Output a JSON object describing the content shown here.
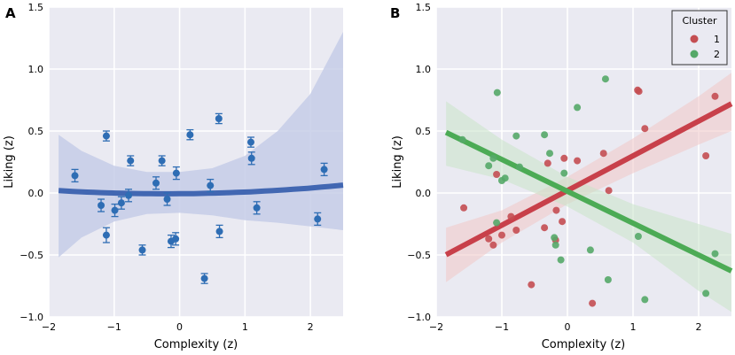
{
  "chart_data": [
    {
      "panel_label": "A",
      "type": "scatter",
      "xlabel": "Complexity (z)",
      "ylabel": "Liking (z)",
      "xlim": [
        -2,
        2.5
      ],
      "ylim": [
        -1.0,
        1.5
      ],
      "xticks": [
        -2,
        -1,
        0,
        1,
        2
      ],
      "yticks": [
        -1.0,
        -0.5,
        0.0,
        0.5,
        1.0,
        1.5
      ],
      "xtick_labels": [
        "−2",
        "−1",
        "0",
        "1",
        "2"
      ],
      "ytick_labels": [
        "−1.0",
        "−0.5",
        "0.0",
        "0.5",
        "1.0",
        "1.5"
      ],
      "grid": true,
      "point_color": "#2e6db4",
      "fit_color": "#4267b2",
      "band_color": "#c6cce8",
      "points": [
        {
          "x": -1.6,
          "y": 0.14,
          "err": 0.05
        },
        {
          "x": -1.2,
          "y": -0.1,
          "err": 0.05
        },
        {
          "x": -1.12,
          "y": 0.46,
          "err": 0.04
        },
        {
          "x": -1.12,
          "y": -0.34,
          "err": 0.06
        },
        {
          "x": -0.99,
          "y": -0.14,
          "err": 0.05
        },
        {
          "x": -0.89,
          "y": -0.08,
          "err": 0.05
        },
        {
          "x": -0.78,
          "y": -0.02,
          "err": 0.05
        },
        {
          "x": -0.75,
          "y": 0.26,
          "err": 0.04
        },
        {
          "x": -0.57,
          "y": -0.46,
          "err": 0.04
        },
        {
          "x": -0.36,
          "y": 0.08,
          "err": 0.05
        },
        {
          "x": -0.27,
          "y": 0.26,
          "err": 0.04
        },
        {
          "x": -0.19,
          "y": -0.05,
          "err": 0.05
        },
        {
          "x": -0.13,
          "y": -0.39,
          "err": 0.05
        },
        {
          "x": -0.06,
          "y": -0.37,
          "err": 0.05
        },
        {
          "x": -0.05,
          "y": 0.16,
          "err": 0.05
        },
        {
          "x": 0.16,
          "y": 0.47,
          "err": 0.04
        },
        {
          "x": 0.38,
          "y": -0.69,
          "err": 0.04
        },
        {
          "x": 0.47,
          "y": 0.06,
          "err": 0.05
        },
        {
          "x": 0.6,
          "y": 0.6,
          "err": 0.04
        },
        {
          "x": 0.61,
          "y": -0.31,
          "err": 0.05
        },
        {
          "x": 1.09,
          "y": 0.41,
          "err": 0.04
        },
        {
          "x": 1.1,
          "y": 0.28,
          "err": 0.05
        },
        {
          "x": 1.18,
          "y": -0.12,
          "err": 0.05
        },
        {
          "x": 2.11,
          "y": -0.21,
          "err": 0.05
        },
        {
          "x": 2.21,
          "y": 0.19,
          "err": 0.05
        }
      ],
      "fit": {
        "model": "quadratic",
        "a": 0.0095,
        "b": 0.004,
        "c": -0.006
      },
      "band": [
        {
          "x": -1.85,
          "lo": -0.52,
          "hi": 0.47
        },
        {
          "x": -1.5,
          "lo": -0.36,
          "hi": 0.34
        },
        {
          "x": -1.0,
          "lo": -0.23,
          "hi": 0.22
        },
        {
          "x": -0.5,
          "lo": -0.17,
          "hi": 0.17
        },
        {
          "x": 0.0,
          "lo": -0.16,
          "hi": 0.17
        },
        {
          "x": 0.5,
          "lo": -0.18,
          "hi": 0.2
        },
        {
          "x": 1.0,
          "lo": -0.22,
          "hi": 0.3
        },
        {
          "x": 1.5,
          "lo": -0.24,
          "hi": 0.5
        },
        {
          "x": 2.0,
          "lo": -0.27,
          "hi": 0.8
        },
        {
          "x": 2.5,
          "lo": -0.3,
          "hi": 1.3
        }
      ]
    },
    {
      "panel_label": "B",
      "type": "scatter",
      "xlabel": "Complexity (z)",
      "ylabel": "Liking (z)",
      "xlim": [
        -2,
        2.5
      ],
      "ylim": [
        -1.0,
        1.5
      ],
      "xticks": [
        -2,
        -1,
        0,
        1,
        2
      ],
      "yticks": [
        -1.0,
        -0.5,
        0.0,
        0.5,
        1.0,
        1.5
      ],
      "xtick_labels": [
        "−2",
        "−1",
        "0",
        "1",
        "2"
      ],
      "ytick_labels": [
        "−1.0",
        "−0.5",
        "0.0",
        "0.5",
        "1.0",
        "1.5"
      ],
      "grid": true,
      "legend": {
        "title": "Cluster",
        "position": "top-right"
      },
      "series": [
        {
          "name": "1",
          "color": "#c44e52",
          "line_color": "#c8404a",
          "band_color": "#f0c6c6",
          "points": [
            {
              "x": -1.58,
              "y": -0.12
            },
            {
              "x": -1.2,
              "y": -0.37
            },
            {
              "x": -1.13,
              "y": -0.42
            },
            {
              "x": -1.08,
              "y": 0.15
            },
            {
              "x": -1.0,
              "y": -0.34
            },
            {
              "x": -0.86,
              "y": -0.19
            },
            {
              "x": -0.78,
              "y": -0.3
            },
            {
              "x": -0.55,
              "y": -0.74
            },
            {
              "x": -0.35,
              "y": -0.28
            },
            {
              "x": -0.3,
              "y": 0.24
            },
            {
              "x": -0.18,
              "y": -0.38
            },
            {
              "x": -0.17,
              "y": -0.14
            },
            {
              "x": -0.08,
              "y": -0.23
            },
            {
              "x": -0.05,
              "y": 0.28
            },
            {
              "x": 0.15,
              "y": 0.26
            },
            {
              "x": 0.38,
              "y": -0.89
            },
            {
              "x": 0.55,
              "y": 0.32
            },
            {
              "x": 0.63,
              "y": 0.02
            },
            {
              "x": 1.07,
              "y": 0.83
            },
            {
              "x": 1.09,
              "y": 0.82
            },
            {
              "x": 1.18,
              "y": 0.52
            },
            {
              "x": 2.11,
              "y": 0.3
            },
            {
              "x": 2.25,
              "y": 0.78
            }
          ],
          "fit": {
            "slope": 0.28,
            "intercept": 0.02
          },
          "band": [
            {
              "x": -1.85,
              "lo": -0.72,
              "hi": -0.28
            },
            {
              "x": -1.0,
              "lo": -0.4,
              "hi": -0.14
            },
            {
              "x": 0.0,
              "lo": -0.09,
              "hi": 0.13
            },
            {
              "x": 1.0,
              "lo": 0.16,
              "hi": 0.44
            },
            {
              "x": 2.0,
              "lo": 0.39,
              "hi": 0.78
            },
            {
              "x": 2.5,
              "lo": 0.5,
              "hi": 0.97
            }
          ]
        },
        {
          "name": "2",
          "color": "#55a868",
          "line_color": "#4cab55",
          "band_color": "#c9e3c9",
          "points": [
            {
              "x": -1.6,
              "y": 0.43
            },
            {
              "x": -1.2,
              "y": 0.22
            },
            {
              "x": -1.13,
              "y": 0.28
            },
            {
              "x": -1.08,
              "y": -0.24
            },
            {
              "x": -1.07,
              "y": 0.81
            },
            {
              "x": -1.0,
              "y": 0.1
            },
            {
              "x": -0.95,
              "y": 0.12
            },
            {
              "x": -0.78,
              "y": 0.46
            },
            {
              "x": -0.73,
              "y": 0.21
            },
            {
              "x": -0.35,
              "y": 0.47
            },
            {
              "x": -0.27,
              "y": 0.32
            },
            {
              "x": -0.2,
              "y": -0.36
            },
            {
              "x": -0.18,
              "y": -0.42
            },
            {
              "x": -0.1,
              "y": -0.54
            },
            {
              "x": -0.05,
              "y": 0.16
            },
            {
              "x": 0.15,
              "y": 0.69
            },
            {
              "x": 0.35,
              "y": -0.46
            },
            {
              "x": 0.58,
              "y": 0.92
            },
            {
              "x": 0.62,
              "y": -0.7
            },
            {
              "x": 1.08,
              "y": -0.35
            },
            {
              "x": 1.18,
              "y": -0.86
            },
            {
              "x": 2.11,
              "y": -0.81
            },
            {
              "x": 2.25,
              "y": -0.49
            }
          ],
          "fit": {
            "slope": -0.257,
            "intercept": 0.0135
          },
          "band": [
            {
              "x": -1.85,
              "lo": 0.22,
              "hi": 0.74
            },
            {
              "x": -1.0,
              "lo": 0.11,
              "hi": 0.43
            },
            {
              "x": 0.0,
              "lo": -0.11,
              "hi": 0.13
            },
            {
              "x": 1.0,
              "lo": -0.4,
              "hi": -0.09
            },
            {
              "x": 2.0,
              "lo": -0.79,
              "hi": -0.25
            },
            {
              "x": 2.5,
              "lo": -0.96,
              "hi": -0.33
            }
          ]
        }
      ]
    }
  ]
}
